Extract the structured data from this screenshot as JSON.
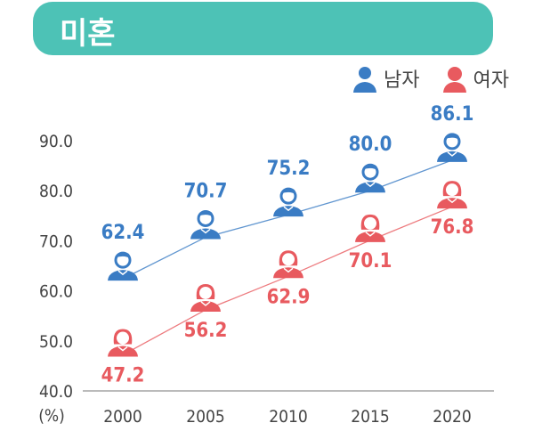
{
  "title": "미혼",
  "colors": {
    "banner": "#4dc2b6",
    "male": "#3a7cc4",
    "female": "#e85a5f"
  },
  "legend": [
    {
      "label": "남자",
      "icon": "male-person-icon",
      "color": "#3a7cc4"
    },
    {
      "label": "여자",
      "icon": "female-person-icon",
      "color": "#e85a5f"
    }
  ],
  "chart_data": {
    "type": "line",
    "categories": [
      "2000",
      "2005",
      "2010",
      "2015",
      "2020"
    ],
    "ylabel": "(%)",
    "ylim": [
      40,
      90
    ],
    "yticks": [
      "40.0",
      "50.0",
      "60.0",
      "70.0",
      "80.0",
      "90.0"
    ],
    "grid": false,
    "legend_position": "top-right",
    "series": [
      {
        "name": "남자",
        "values": [
          62.4,
          70.7,
          75.2,
          80.0,
          86.1
        ],
        "labels": [
          "62.4",
          "70.7",
          "75.2",
          "80.0",
          "86.1"
        ]
      },
      {
        "name": "여자",
        "values": [
          47.2,
          56.2,
          62.9,
          70.1,
          76.8
        ],
        "labels": [
          "47.2",
          "56.2",
          "62.9",
          "70.1",
          "76.8"
        ]
      }
    ]
  }
}
